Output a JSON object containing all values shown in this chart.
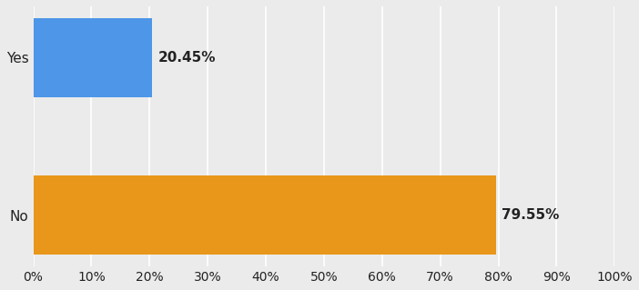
{
  "categories": [
    "Yes",
    "No"
  ],
  "values": [
    20.45,
    79.55
  ],
  "bar_colors": [
    "#4D96E8",
    "#E8971A"
  ],
  "label_texts": [
    "20.45%",
    "79.55%"
  ],
  "background_color": "#EBEBEB",
  "text_color": "#222222",
  "xlim": [
    0,
    100
  ],
  "xticks": [
    0,
    10,
    20,
    30,
    40,
    50,
    60,
    70,
    80,
    90,
    100
  ],
  "bar_height": 0.5,
  "label_fontsize": 11,
  "tick_fontsize": 10,
  "ytick_fontsize": 11
}
